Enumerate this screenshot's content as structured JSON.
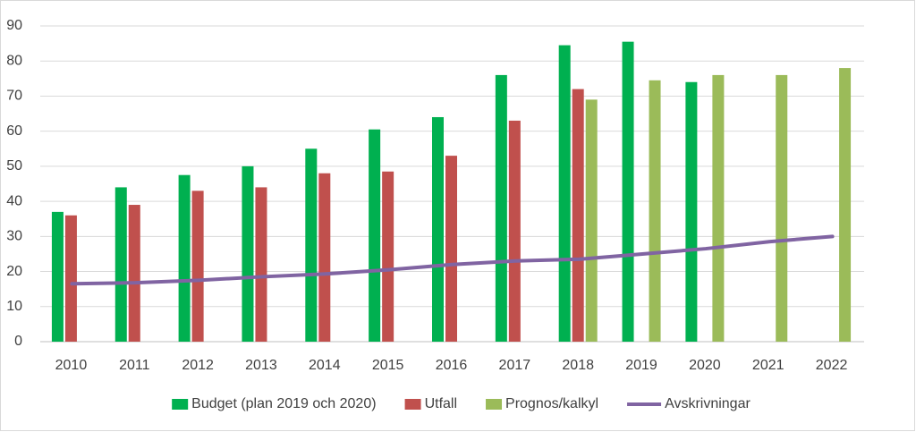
{
  "chart_data": {
    "type": "bar",
    "categories": [
      "2010",
      "2011",
      "2012",
      "2013",
      "2014",
      "2015",
      "2016",
      "2017",
      "2018",
      "2019",
      "2020",
      "2021",
      "2022"
    ],
    "series": [
      {
        "name": "Budget (plan 2019 och 2020)",
        "color": "#00b050",
        "values": [
          37,
          44,
          47.5,
          50,
          55,
          60.5,
          64,
          76,
          84.5,
          85.5,
          74,
          null,
          null
        ]
      },
      {
        "name": "Utfall",
        "color": "#c0504d",
        "values": [
          36,
          39,
          43,
          44,
          48,
          48.5,
          53,
          63,
          72,
          null,
          null,
          null,
          null
        ]
      },
      {
        "name": "Prognos/kalkyl",
        "color": "#9bbb59",
        "values": [
          null,
          null,
          null,
          null,
          null,
          null,
          null,
          null,
          69,
          74.5,
          76,
          76,
          78
        ]
      },
      {
        "name": "Avskrivningar",
        "color": "#8064a2",
        "type": "line",
        "values": [
          16.5,
          16.8,
          17.5,
          18.5,
          19.3,
          20.5,
          22,
          23,
          23.5,
          25,
          26.5,
          28.5,
          30
        ]
      }
    ],
    "ylim": [
      0,
      90
    ],
    "yticks": [
      0,
      10,
      20,
      30,
      40,
      50,
      60,
      70,
      80,
      90
    ],
    "grid": true,
    "legend": "bottom"
  }
}
